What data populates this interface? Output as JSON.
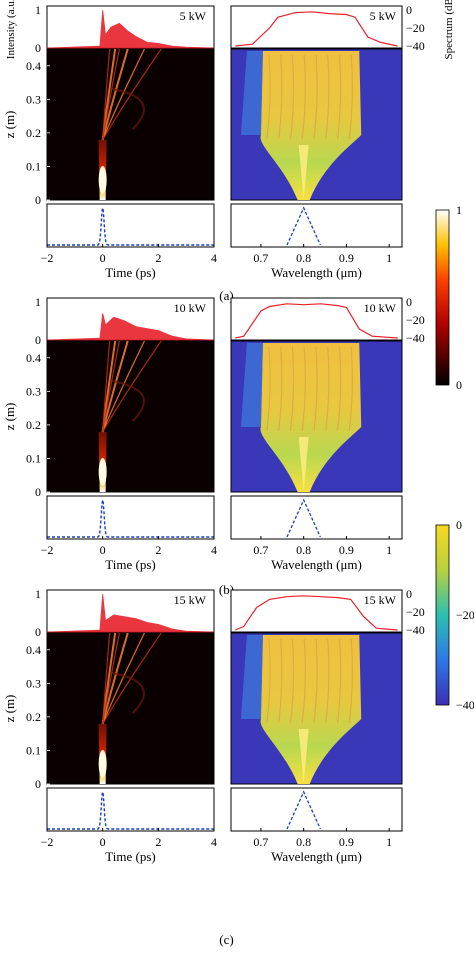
{
  "chart_data": [
    {
      "panel": "(a)",
      "peak_power_label": "5 kW",
      "type": "heatmap",
      "time_domain": {
        "top_ylabel": "Intensity (a.u.)",
        "top_yticks": [
          "0",
          "1"
        ],
        "main_ylabel": "z (m)",
        "main_yticks": [
          "0",
          "0.1",
          "0.2",
          "0.3",
          "0.4"
        ],
        "xlabel": "Time (ps)",
        "xticks": [
          "−2",
          "0",
          "2",
          "4"
        ],
        "xlim": [
          -2,
          4
        ],
        "zlim": [
          0,
          0.45
        ],
        "output_trace": {
          "t": [
            -0.1,
            0,
            0.1,
            0.3,
            0.6,
            0.9,
            1.2,
            1.6,
            2.0,
            2.5,
            3.0
          ],
          "intensity": [
            0.05,
            1.0,
            0.35,
            0.55,
            0.65,
            0.45,
            0.3,
            0.15,
            0.12,
            0.05,
            0.02
          ]
        },
        "input_pulse": {
          "center_ps": 0,
          "fwhm_ps": 0.12
        }
      },
      "spectral_domain": {
        "top_ylabel": "Spectrum (dB)",
        "top_yticks": [
          "0",
          "−20",
          "−40"
        ],
        "xlabel": "Wavelength (μm)",
        "xticks": [
          "0.7",
          "0.8",
          "0.9",
          "1"
        ],
        "xlim": [
          0.63,
          1.03
        ],
        "output_spectrum": {
          "wavelength_um": [
            0.64,
            0.68,
            0.72,
            0.74,
            0.78,
            0.82,
            0.86,
            0.9,
            0.92,
            0.95,
            0.98,
            1.02
          ],
          "dB": [
            -40,
            -38,
            -20,
            -8,
            -3,
            -2,
            -4,
            -5,
            -8,
            -30,
            -36,
            -40
          ]
        },
        "input_spectrum": {
          "center_um": 0.8,
          "halfwidth_um": 0.03
        }
      }
    },
    {
      "panel": "(b)",
      "peak_power_label": "10 kW",
      "type": "heatmap",
      "time_domain": {
        "top_yticks": [
          "0",
          "1"
        ],
        "main_ylabel": "z (m)",
        "main_yticks": [
          "0",
          "0.1",
          "0.2",
          "0.3",
          "0.4"
        ],
        "xlabel": "Time (ps)",
        "xticks": [
          "−2",
          "0",
          "2",
          "4"
        ],
        "xlim": [
          -2,
          4
        ],
        "zlim": [
          0,
          0.45
        ],
        "output_trace": {
          "t": [
            -0.1,
            0,
            0.1,
            0.4,
            0.8,
            1.2,
            1.6,
            2.0,
            2.5,
            3.0
          ],
          "intensity": [
            0.05,
            0.7,
            0.4,
            0.6,
            0.5,
            0.35,
            0.3,
            0.25,
            0.1,
            0.03
          ]
        },
        "input_pulse": {
          "center_ps": 0,
          "fwhm_ps": 0.12
        }
      },
      "spectral_domain": {
        "top_yticks": [
          "0",
          "−20",
          "−40"
        ],
        "xlabel": "Wavelength (μm)",
        "xticks": [
          "0.7",
          "0.8",
          "0.9",
          "1"
        ],
        "xlim": [
          0.63,
          1.03
        ],
        "output_spectrum": {
          "wavelength_um": [
            0.64,
            0.66,
            0.7,
            0.72,
            0.76,
            0.8,
            0.84,
            0.88,
            0.9,
            0.93,
            0.96,
            1.02
          ],
          "dB": [
            -40,
            -38,
            -10,
            -5,
            -2,
            -3,
            -2,
            -4,
            -6,
            -30,
            -38,
            -40
          ]
        },
        "input_spectrum": {
          "center_um": 0.8,
          "halfwidth_um": 0.03
        }
      }
    },
    {
      "panel": "(c)",
      "peak_power_label": "15 kW",
      "type": "heatmap",
      "time_domain": {
        "top_yticks": [
          "0",
          "1"
        ],
        "main_ylabel": "z (m)",
        "main_yticks": [
          "0",
          "0.1",
          "0.2",
          "0.3",
          "0.4"
        ],
        "xlabel": "Time (ps)",
        "xticks": [
          "−2",
          "0",
          "2",
          "4"
        ],
        "xlim": [
          -2,
          4
        ],
        "zlim": [
          0,
          0.45
        ],
        "output_trace": {
          "t": [
            -0.1,
            0,
            0.1,
            0.4,
            0.8,
            1.2,
            1.6,
            2.0,
            2.5,
            3.0
          ],
          "intensity": [
            0.05,
            1.0,
            0.3,
            0.45,
            0.4,
            0.35,
            0.25,
            0.2,
            0.08,
            0.02
          ]
        },
        "input_pulse": {
          "center_ps": 0,
          "fwhm_ps": 0.12
        }
      },
      "spectral_domain": {
        "top_yticks": [
          "0",
          "−20",
          "−40"
        ],
        "xlabel": "Wavelength (μm)",
        "xticks": [
          "0.7",
          "0.8",
          "0.9",
          "1"
        ],
        "xlim": [
          0.63,
          1.03
        ],
        "output_spectrum": {
          "wavelength_um": [
            0.64,
            0.66,
            0.69,
            0.72,
            0.76,
            0.8,
            0.84,
            0.88,
            0.91,
            0.94,
            0.97,
            1.02
          ],
          "dB": [
            -40,
            -36,
            -15,
            -6,
            -3,
            -2,
            -3,
            -4,
            -6,
            -25,
            -38,
            -40
          ]
        },
        "input_spectrum": {
          "center_um": 0.8,
          "halfwidth_um": 0.03
        }
      }
    }
  ],
  "colorbars": [
    {
      "label": "Intensity (a.u.)",
      "ticks": [
        "1",
        "0"
      ],
      "colormap": "hot"
    },
    {
      "label": "Spectrum (dB)",
      "ticks": [
        "0",
        "−20",
        "−40"
      ],
      "colormap": "jet"
    }
  ],
  "colors": {
    "trace": "#e8212b",
    "input": "#1a3ccc",
    "background": "#ffffff"
  }
}
